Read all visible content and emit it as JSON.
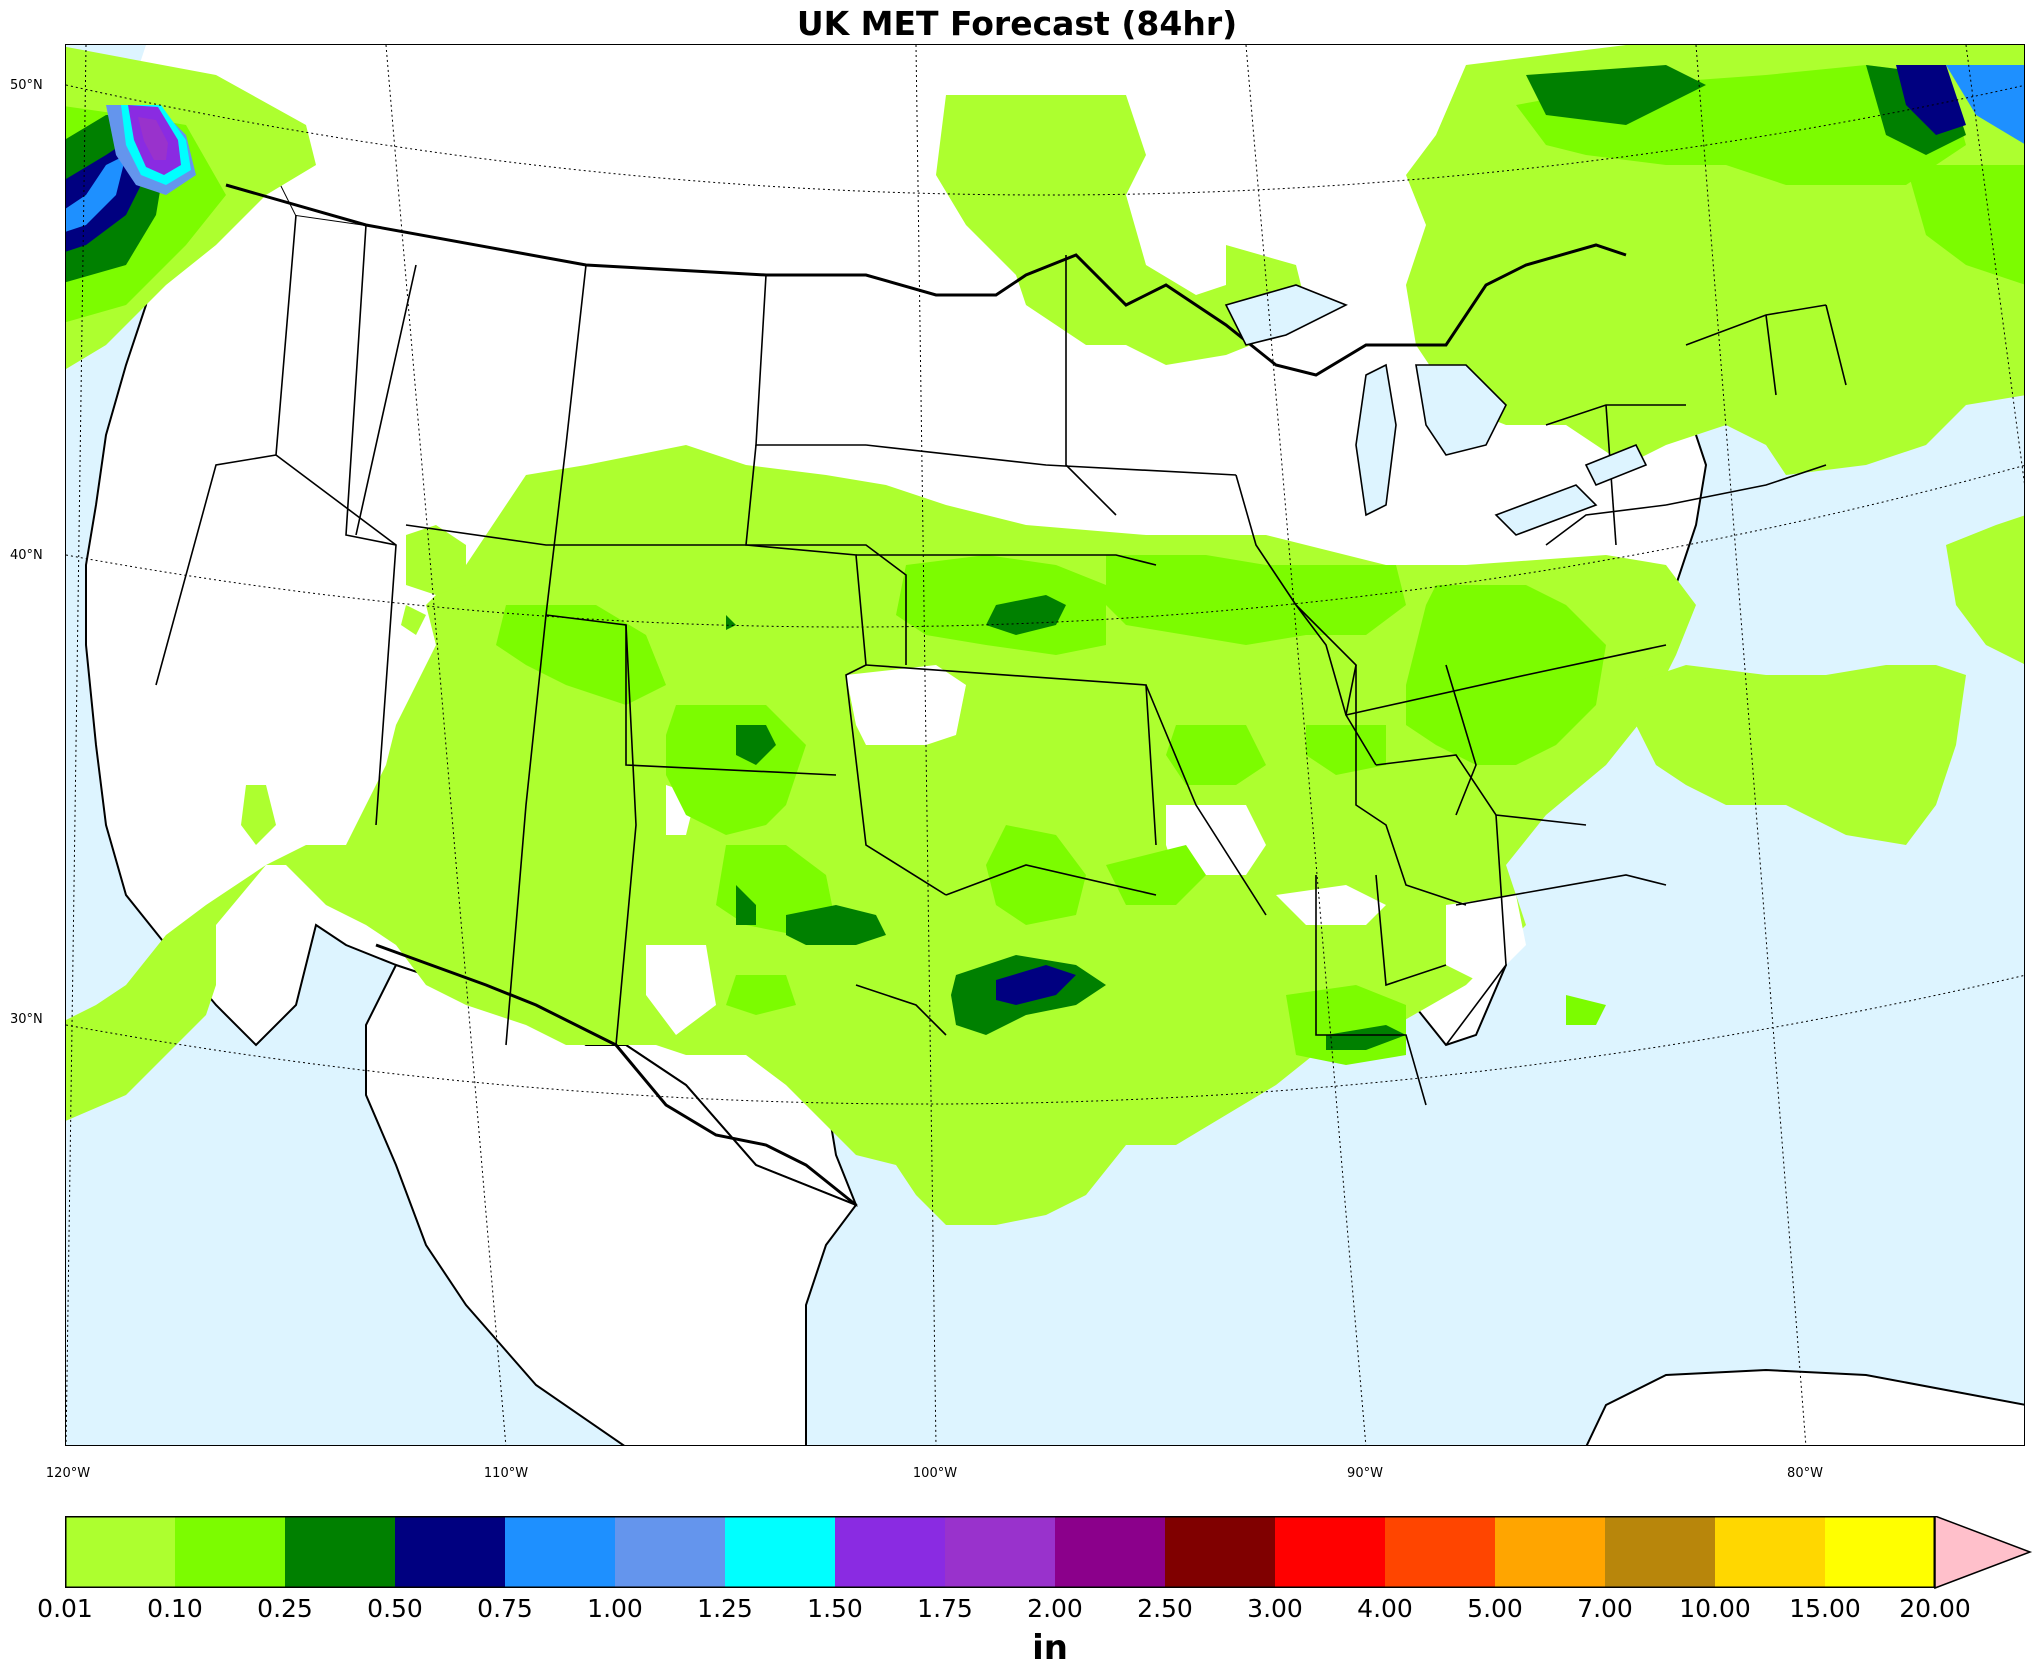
{
  "title": "UK MET Forecast (84hr)",
  "lat_labels": [
    "50°N",
    "40°N",
    "30°N"
  ],
  "lon_labels": [
    "120°W",
    "110°W",
    "100°W",
    "90°W",
    "80°W"
  ],
  "colorbar": {
    "unit": "in",
    "ticks": [
      "0.01",
      "0.10",
      "0.25",
      "0.50",
      "0.75",
      "1.00",
      "1.25",
      "1.50",
      "1.75",
      "2.00",
      "2.50",
      "3.00",
      "4.00",
      "5.00",
      "7.00",
      "10.00",
      "15.00",
      "20.00"
    ],
    "colors": [
      "#adff2f",
      "#7cfc00",
      "#008000",
      "#000080",
      "#1e90ff",
      "#6495ed",
      "#00ffff",
      "#8a2be2",
      "#9932cc",
      "#8b008b",
      "#800000",
      "#ff0000",
      "#ff4500",
      "#ffa500",
      "#b8860b",
      "#ffd700",
      "#ffff00"
    ],
    "extend_color": "#ffc0cb"
  },
  "map": {
    "water_color": "#ddf4ff",
    "land_color": "#ffffff",
    "max_precip_region": "Pacific Northwest coast (1.75–2.00 in)",
    "secondary_max_region": "Oklahoma/Texas panhandle area (0.50–0.75 in)"
  }
}
